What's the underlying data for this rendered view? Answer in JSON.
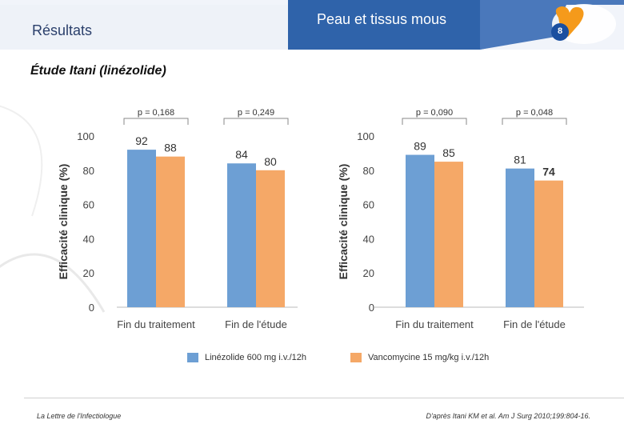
{
  "header": {
    "section": "Résultats",
    "topic": "Peau et tissus mous",
    "page_number": "8",
    "colors": {
      "bar_dark": "#1f4f8f",
      "bar_mid": "#3f72b8",
      "light": "#e6ecf5",
      "orange": "#f5a623",
      "page_badge": "#1a4fa0"
    }
  },
  "subtitle": "Étude Itani (linézolide)",
  "chart_data": [
    {
      "type": "bar",
      "title": "",
      "categories": [
        "Fin du traitement",
        "Fin de l'étude"
      ],
      "series": [
        {
          "name": "Linézolide 600 mg i.v./12h",
          "color": "#6d9fd4",
          "values": [
            92,
            84
          ]
        },
        {
          "name": "Vancomycine 15 mg/kg i.v./12h",
          "color": "#f5a867",
          "values": [
            88,
            80
          ]
        }
      ],
      "pvalues": [
        "p = 0,168",
        "p = 0,249"
      ],
      "ylabel": "Efficacité clinique (%)",
      "xlabel": "",
      "ylim": [
        0,
        100
      ],
      "yticks": [
        0,
        20,
        40,
        60,
        80,
        100
      ],
      "grid": false
    },
    {
      "type": "bar",
      "title": "",
      "categories": [
        "Fin du traitement",
        "Fin de l'étude"
      ],
      "series": [
        {
          "name": "Linézolide 600 mg i.v./12h",
          "color": "#6d9fd4",
          "values": [
            89,
            81
          ]
        },
        {
          "name": "Vancomycine 15 mg/kg i.v./12h",
          "color": "#f5a867",
          "values": [
            85,
            74
          ]
        }
      ],
      "pvalues": [
        "p = 0,090",
        "p = 0,048"
      ],
      "ylabel": "Efficacité clinique (%)",
      "xlabel": "",
      "ylim": [
        0,
        100
      ],
      "yticks": [
        0,
        20,
        40,
        60,
        80,
        100
      ],
      "grid": false
    }
  ],
  "legend": {
    "items": [
      {
        "label": "Linézolide 600 mg i.v./12h",
        "color": "#6d9fd4"
      },
      {
        "label": "Vancomycine 15 mg/kg i.v./12h",
        "color": "#f5a867"
      }
    ]
  },
  "footer": {
    "left": "La Lettre de l'Infectiologue",
    "right": "D'après Itani KM et al. Am J Surg 2010;199:804-16."
  }
}
